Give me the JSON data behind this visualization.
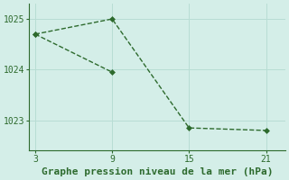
{
  "line1_x": [
    3,
    9,
    15,
    21
  ],
  "line1_y": [
    1024.7,
    1025.0,
    1022.85,
    1022.8
  ],
  "line2_x": [
    3,
    9
  ],
  "line2_y": [
    1024.7,
    1023.95
  ],
  "line_color": "#2d6a2d",
  "bg_color": "#d4eee8",
  "xlabel": "Graphe pression niveau de la mer (hPa)",
  "xticks": [
    3,
    9,
    15,
    21
  ],
  "yticks": [
    1023,
    1024,
    1025
  ],
  "ylim": [
    1022.4,
    1025.3
  ],
  "xlim": [
    2.5,
    22.5
  ],
  "grid_color": "#b8ddd4",
  "markersize": 3,
  "linewidth": 1.0,
  "xlabel_fontsize": 8,
  "tick_fontsize": 7
}
